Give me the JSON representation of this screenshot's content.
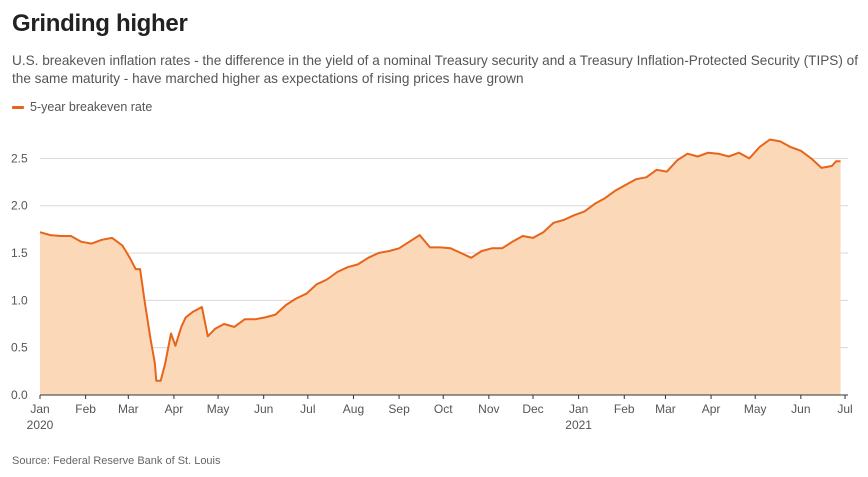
{
  "title": "Grinding higher",
  "subtitle": "U.S. breakeven inflation rates - the difference in the yield of a nominal Treasury security and a Treasury Inflation-Protected Security (TIPS) of the same maturity - have marched higher as expectations of rising prices have grown",
  "source": "Source: Federal Reserve Bank of St. Louis",
  "colors": {
    "line": "#e8641b",
    "area": "#fbd9b8",
    "grid": "#d8d8d8",
    "axis": "#333333"
  },
  "chart_data": {
    "type": "area",
    "title": "Grinding higher",
    "xlabel": "",
    "ylabel": "",
    "ylim": [
      0,
      2.5
    ],
    "grid": true,
    "legend_position": "top-left",
    "y_ticks": [
      "0.0",
      "0.5",
      "1.0",
      "1.5",
      "2.0",
      "2.5"
    ],
    "x_ticks": [
      {
        "label": "Jan",
        "year": "2020"
      },
      {
        "label": "Feb",
        "year": ""
      },
      {
        "label": "Mar",
        "year": ""
      },
      {
        "label": "Apr",
        "year": ""
      },
      {
        "label": "May",
        "year": ""
      },
      {
        "label": "Jun",
        "year": ""
      },
      {
        "label": "Jul",
        "year": ""
      },
      {
        "label": "Aug",
        "year": ""
      },
      {
        "label": "Sep",
        "year": ""
      },
      {
        "label": "Oct",
        "year": ""
      },
      {
        "label": "Nov",
        "year": ""
      },
      {
        "label": "Dec",
        "year": ""
      },
      {
        "label": "Jan",
        "year": "2021"
      },
      {
        "label": "Feb",
        "year": ""
      },
      {
        "label": "Mar",
        "year": ""
      },
      {
        "label": "Apr",
        "year": ""
      },
      {
        "label": "May",
        "year": ""
      },
      {
        "label": "Jun",
        "year": ""
      },
      {
        "label": "Jul",
        "year": ""
      }
    ],
    "series": [
      {
        "name": "5-year breakeven rate",
        "x": [
          "2020-01-01",
          "2020-01-08",
          "2020-01-15",
          "2020-01-22",
          "2020-01-29",
          "2020-02-05",
          "2020-02-12",
          "2020-02-19",
          "2020-02-26",
          "2020-03-02",
          "2020-03-06",
          "2020-03-09",
          "2020-03-12",
          "2020-03-16",
          "2020-03-19",
          "2020-03-20",
          "2020-03-23",
          "2020-03-26",
          "2020-03-30",
          "2020-04-02",
          "2020-04-06",
          "2020-04-09",
          "2020-04-14",
          "2020-04-20",
          "2020-04-24",
          "2020-04-29",
          "2020-05-05",
          "2020-05-12",
          "2020-05-19",
          "2020-05-26",
          "2020-06-02",
          "2020-06-09",
          "2020-06-16",
          "2020-06-23",
          "2020-06-30",
          "2020-07-07",
          "2020-07-14",
          "2020-07-21",
          "2020-07-28",
          "2020-08-04",
          "2020-08-11",
          "2020-08-18",
          "2020-08-25",
          "2020-09-01",
          "2020-09-08",
          "2020-09-15",
          "2020-09-22",
          "2020-09-29",
          "2020-10-06",
          "2020-10-13",
          "2020-10-20",
          "2020-10-27",
          "2020-11-03",
          "2020-11-10",
          "2020-11-17",
          "2020-11-24",
          "2020-12-01",
          "2020-12-08",
          "2020-12-15",
          "2020-12-22",
          "2020-12-29",
          "2021-01-05",
          "2021-01-12",
          "2021-01-19",
          "2021-01-26",
          "2021-02-02",
          "2021-02-09",
          "2021-02-16",
          "2021-02-23",
          "2021-03-02",
          "2021-03-09",
          "2021-03-16",
          "2021-03-23",
          "2021-03-30",
          "2021-04-06",
          "2021-04-13",
          "2021-04-20",
          "2021-04-27",
          "2021-05-04",
          "2021-05-11",
          "2021-05-18",
          "2021-05-25",
          "2021-06-01",
          "2021-06-08",
          "2021-06-15",
          "2021-06-22",
          "2021-06-25",
          "2021-06-28"
        ],
        "values": [
          1.72,
          1.69,
          1.68,
          1.68,
          1.62,
          1.6,
          1.64,
          1.66,
          1.58,
          1.45,
          1.33,
          1.33,
          1.0,
          0.6,
          0.34,
          0.15,
          0.15,
          0.33,
          0.65,
          0.52,
          0.72,
          0.82,
          0.88,
          0.93,
          0.62,
          0.7,
          0.75,
          0.72,
          0.8,
          0.8,
          0.82,
          0.85,
          0.95,
          1.02,
          1.07,
          1.17,
          1.22,
          1.3,
          1.35,
          1.38,
          1.45,
          1.5,
          1.52,
          1.55,
          1.62,
          1.69,
          1.56,
          1.56,
          1.55,
          1.5,
          1.45,
          1.52,
          1.55,
          1.55,
          1.62,
          1.68,
          1.66,
          1.72,
          1.82,
          1.85,
          1.9,
          1.94,
          2.02,
          2.08,
          2.16,
          2.22,
          2.28,
          2.3,
          2.38,
          2.36,
          2.48,
          2.55,
          2.52,
          2.56,
          2.55,
          2.52,
          2.56,
          2.5,
          2.62,
          2.7,
          2.68,
          2.62,
          2.58,
          2.5,
          2.4,
          2.42,
          2.47,
          2.47
        ]
      }
    ]
  }
}
